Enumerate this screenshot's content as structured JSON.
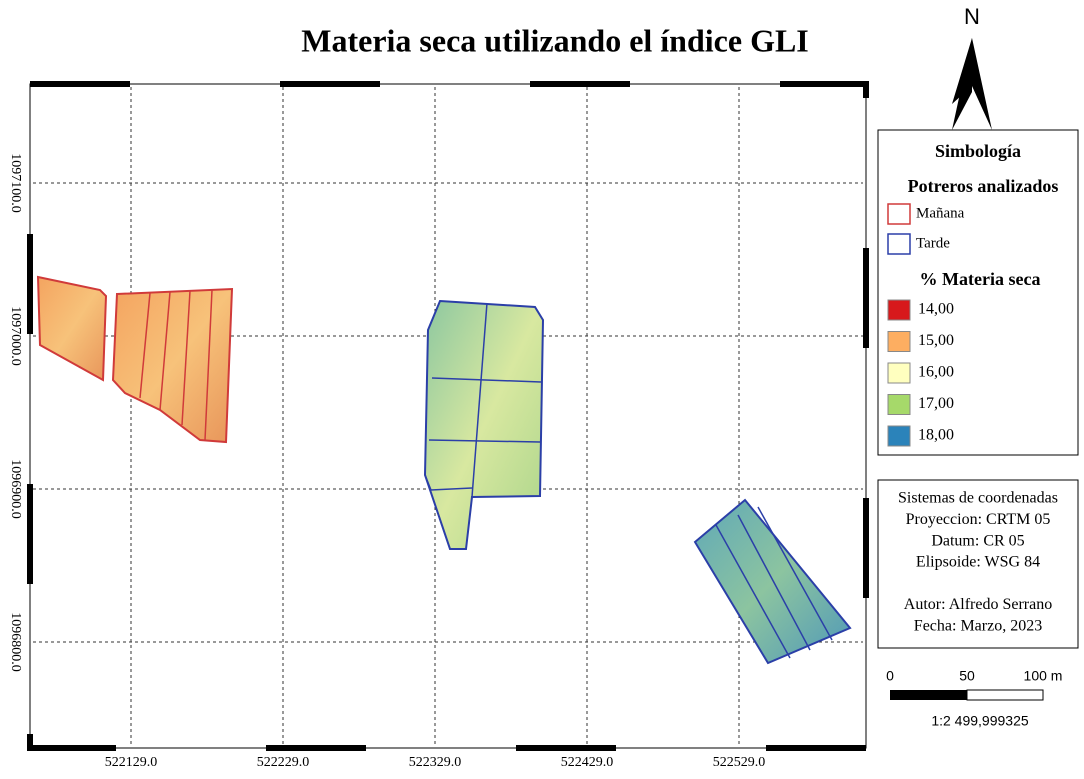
{
  "title": "Materia seca utilizando el índice GLI",
  "north": "N",
  "map": {
    "x_labels": [
      "522129.0",
      "522229.0",
      "522329.0",
      "522429.0",
      "522529.0"
    ],
    "y_labels": [
      "1097100.0",
      "1097000.0",
      "1096900.0",
      "1096800.0"
    ]
  },
  "legend": {
    "title": "Simbología",
    "fields_title": "Potreros analizados",
    "fields": [
      {
        "label": "Mañana",
        "color": "#d03a3a"
      },
      {
        "label": "Tarde",
        "color": "#2b3fa8"
      }
    ],
    "classes_title": "% Materia seca",
    "classes": [
      {
        "label": "14,00",
        "color": "#d7191c"
      },
      {
        "label": "15,00",
        "color": "#fdae61"
      },
      {
        "label": "16,00",
        "color": "#ffffbf"
      },
      {
        "label": "17,00",
        "color": "#a6d96a"
      },
      {
        "label": "18,00",
        "color": "#2b83ba"
      }
    ]
  },
  "info": [
    "Sistemas de coordenadas",
    "Proyeccion: CRTM 05",
    "Datum: CR 05",
    "Elipsoide: WSG 84",
    "",
    "Autor: Alfredo Serrano",
    "Fecha: Marzo, 2023"
  ],
  "scale": {
    "labels": [
      "0",
      "50",
      "100 m"
    ],
    "ratio": "1:2 499,999325"
  }
}
